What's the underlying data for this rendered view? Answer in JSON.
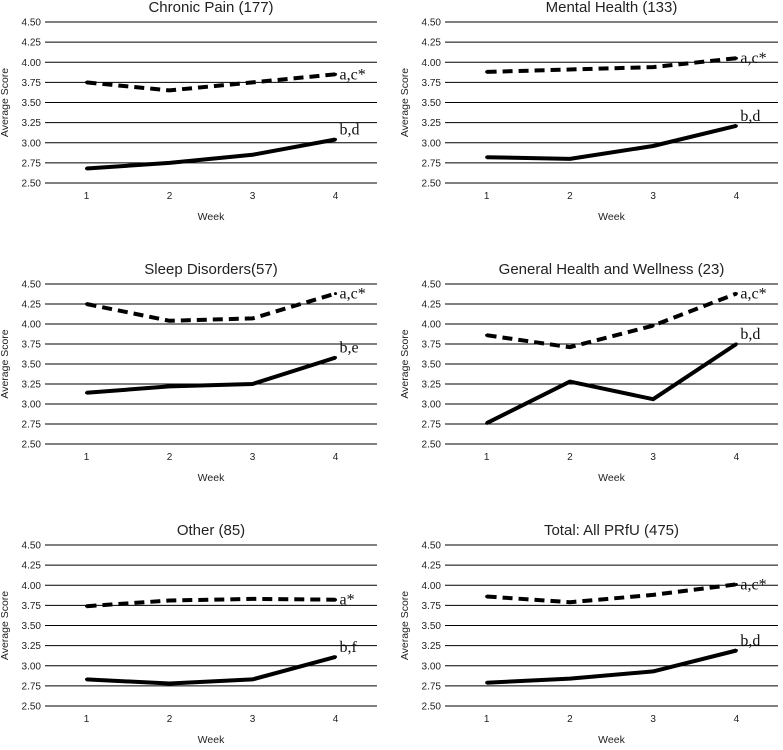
{
  "colors": {
    "line": "#000000",
    "grid": "#000000",
    "text": "#222222",
    "background": "#ffffff"
  },
  "chart_data": [
    {
      "type": "line",
      "title": "Chronic Pain (177)",
      "xlabel": "Week",
      "ylabel": "Average Score",
      "x": [
        1,
        2,
        3,
        4
      ],
      "ylim": [
        2.5,
        4.5
      ],
      "yticks": [
        "4.50",
        "4.25",
        "4.00",
        "3.75",
        "3.50",
        "3.25",
        "3.00",
        "2.75",
        "2.50"
      ],
      "grid": true,
      "series": [
        {
          "name": "dashed",
          "style": "dashed",
          "values": [
            3.75,
            3.65,
            3.75,
            3.85
          ],
          "label": "a,c*"
        },
        {
          "name": "solid",
          "style": "solid",
          "values": [
            2.68,
            2.75,
            2.85,
            3.04
          ],
          "label": "b,d"
        }
      ]
    },
    {
      "type": "line",
      "title": "Mental Health (133)",
      "xlabel": "Week",
      "ylabel": "Average Score",
      "x": [
        1,
        2,
        3,
        4
      ],
      "ylim": [
        2.5,
        4.5
      ],
      "yticks": [
        "4.50",
        "4.25",
        "4.00",
        "3.75",
        "3.50",
        "3.25",
        "3.00",
        "2.75",
        "2.50"
      ],
      "grid": true,
      "series": [
        {
          "name": "dashed",
          "style": "dashed",
          "values": [
            3.88,
            3.91,
            3.94,
            4.05
          ],
          "label": "a,c*"
        },
        {
          "name": "solid",
          "style": "solid",
          "values": [
            2.82,
            2.8,
            2.96,
            3.21
          ],
          "label": "b,d"
        }
      ]
    },
    {
      "type": "line",
      "title": "Sleep Disorders(57)",
      "xlabel": "Week",
      "ylabel": "Average Score",
      "x": [
        1,
        2,
        3,
        4
      ],
      "ylim": [
        2.5,
        4.5
      ],
      "yticks": [
        "4.50",
        "4.25",
        "4.00",
        "3.75",
        "3.50",
        "3.25",
        "3.00",
        "2.75",
        "2.50"
      ],
      "grid": true,
      "series": [
        {
          "name": "dashed",
          "style": "dashed",
          "values": [
            4.25,
            4.04,
            4.07,
            4.38
          ],
          "label": "a,c*"
        },
        {
          "name": "solid",
          "style": "solid",
          "values": [
            3.14,
            3.22,
            3.25,
            3.58
          ],
          "label": "b,e"
        }
      ]
    },
    {
      "type": "line",
      "title": "General Health and Wellness (23)",
      "xlabel": "Week",
      "ylabel": "Average Score",
      "x": [
        1,
        2,
        3,
        4
      ],
      "ylim": [
        2.5,
        4.5
      ],
      "yticks": [
        "4.50",
        "4.25",
        "4.00",
        "3.75",
        "3.50",
        "3.25",
        "3.00",
        "2.75",
        "2.50"
      ],
      "grid": true,
      "series": [
        {
          "name": "dashed",
          "style": "dashed",
          "values": [
            3.86,
            3.71,
            3.98,
            4.38
          ],
          "label": "a,c*"
        },
        {
          "name": "solid",
          "style": "solid",
          "values": [
            2.76,
            3.28,
            3.06,
            3.75
          ],
          "label": "b,d"
        }
      ]
    },
    {
      "type": "line",
      "title": "Other (85)",
      "xlabel": "Week",
      "ylabel": "Average Score",
      "x": [
        1,
        2,
        3,
        4
      ],
      "ylim": [
        2.5,
        4.5
      ],
      "yticks": [
        "4.50",
        "4.25",
        "4.00",
        "3.75",
        "3.50",
        "3.25",
        "3.00",
        "2.75",
        "2.50"
      ],
      "grid": true,
      "series": [
        {
          "name": "dashed",
          "style": "dashed",
          "values": [
            3.74,
            3.81,
            3.83,
            3.82
          ],
          "label": "a*"
        },
        {
          "name": "solid",
          "style": "solid",
          "values": [
            2.83,
            2.78,
            2.83,
            3.11
          ],
          "label": "b,f"
        }
      ]
    },
    {
      "type": "line",
      "title": "Total: All PRfU (475)",
      "xlabel": "Week",
      "ylabel": "Average Score",
      "x": [
        1,
        2,
        3,
        4
      ],
      "ylim": [
        2.5,
        4.5
      ],
      "yticks": [
        "4.50",
        "4.25",
        "4.00",
        "3.75",
        "3.50",
        "3.25",
        "3.00",
        "2.75",
        "2.50"
      ],
      "grid": true,
      "series": [
        {
          "name": "dashed",
          "style": "dashed",
          "values": [
            3.86,
            3.79,
            3.88,
            4.01
          ],
          "label": "a,c*"
        },
        {
          "name": "solid",
          "style": "solid",
          "values": [
            2.79,
            2.84,
            2.93,
            3.19
          ],
          "label": "b,d"
        }
      ]
    }
  ]
}
